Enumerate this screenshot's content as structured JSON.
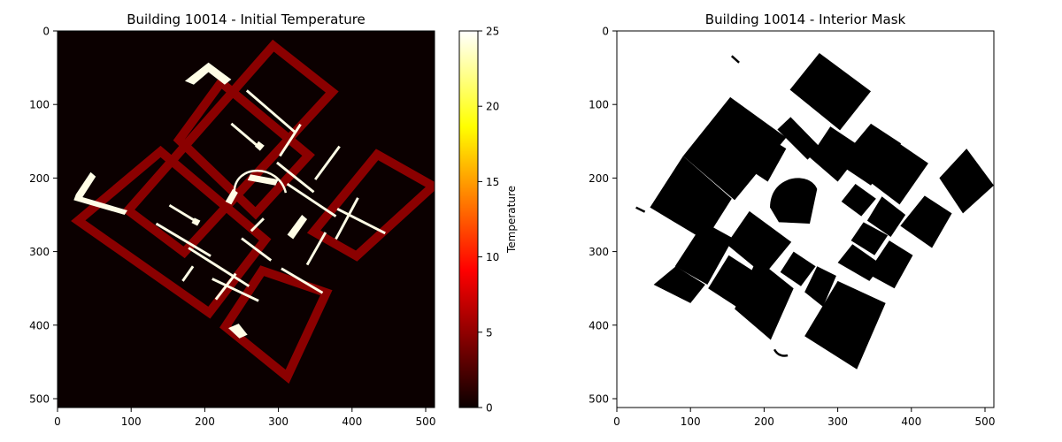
{
  "chart_data": [
    {
      "type": "heatmap",
      "title": "Building 10014 - Initial Temperature",
      "xlim": [
        0,
        512
      ],
      "ylim": [
        512,
        0
      ],
      "xticks": [
        0,
        100,
        200,
        300,
        400,
        500
      ],
      "yticks": [
        0,
        100,
        200,
        300,
        400,
        500
      ],
      "colormap": "hot",
      "colorbar": {
        "label": "Temperature",
        "range": [
          0,
          25
        ],
        "ticks": [
          0,
          5,
          10,
          15,
          20,
          25
        ]
      },
      "values": {
        "background": 0,
        "outer_walls": 5,
        "interior_walls": 25
      },
      "colors": {
        "background": "#0b0000",
        "outer_walls": "#8b0000",
        "interior_walls": "#fffde6"
      }
    },
    {
      "type": "heatmap",
      "title": "Building 10014 - Interior Mask",
      "xlim": [
        0,
        512
      ],
      "ylim": [
        512,
        0
      ],
      "xticks": [
        0,
        100,
        200,
        300,
        400,
        500
      ],
      "yticks": [
        0,
        100,
        200,
        300,
        400,
        500
      ],
      "colormap": "gray",
      "colors": {
        "interior": "#000000",
        "exterior": "#ffffff"
      }
    }
  ]
}
